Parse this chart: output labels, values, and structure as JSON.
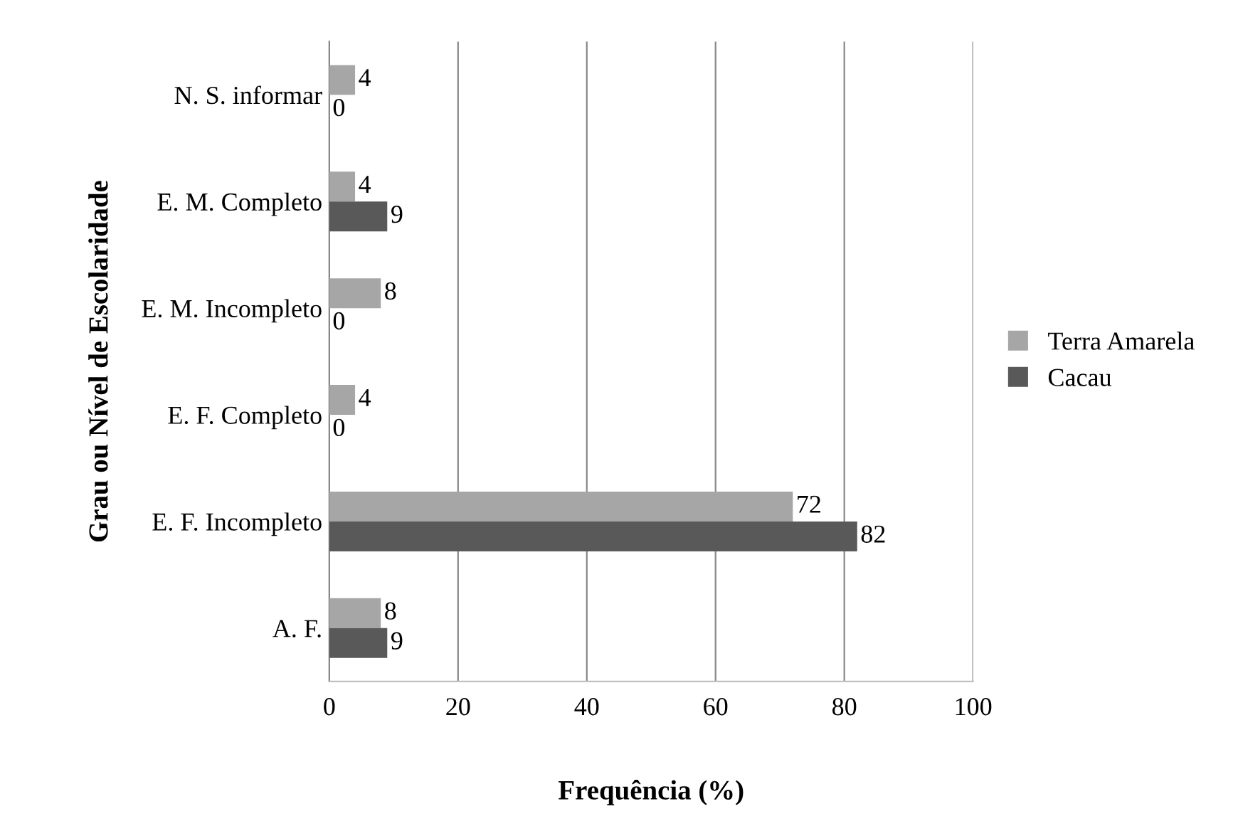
{
  "chart_data": {
    "type": "bar",
    "orientation": "horizontal",
    "xlabel": "Frequência (%)",
    "ylabel": "Grau ou Nível de Escolaridade",
    "categories": [
      "N. S. informar",
      "E. M. Completo",
      "E. M. Incompleto",
      "E. F. Completo",
      "E. F. Incompleto",
      "A. F."
    ],
    "series": [
      {
        "name": "Terra Amarela",
        "color": "#a6a6a6",
        "values": [
          4,
          4,
          8,
          4,
          72,
          8
        ]
      },
      {
        "name": "Cacau",
        "color": "#595959",
        "values": [
          0,
          9,
          0,
          0,
          82,
          9
        ]
      }
    ],
    "xlim": [
      0,
      100
    ],
    "xticks": [
      0,
      20,
      40,
      60,
      80,
      100
    ],
    "grid": "x",
    "legend": "right",
    "data_labels": true
  }
}
